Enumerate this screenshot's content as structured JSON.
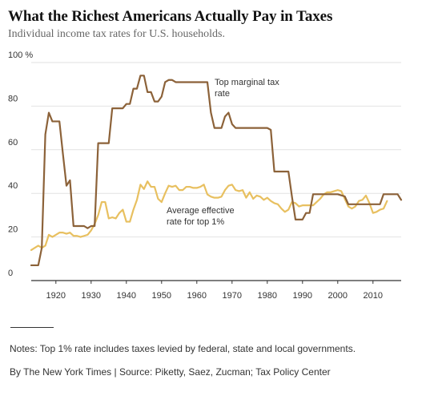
{
  "title": "What the Richest Americans Actually Pay in Taxes",
  "subtitle": "Individual income tax rates for U.S. households.",
  "notes": "Notes: Top 1% rate includes taxes levied by federal, state and local governments.",
  "credit": "By The New York Times | Source: Piketty, Saez, Zucman; Tax Policy Center",
  "colors": {
    "top_marginal": "#8c6239",
    "effective": "#e8c060",
    "grid": "#e2e2e2",
    "baseline": "#333333",
    "text": "#333333"
  },
  "chart_data": {
    "type": "line",
    "xlim": [
      1913,
      2018
    ],
    "ylim": [
      0,
      100
    ],
    "x_ticks": [
      1920,
      1930,
      1940,
      1950,
      1960,
      1970,
      1980,
      1990,
      2000,
      2010
    ],
    "y_ticks": [
      {
        "value": 0,
        "label": "0"
      },
      {
        "value": 20,
        "label": "20"
      },
      {
        "value": 40,
        "label": "40"
      },
      {
        "value": 60,
        "label": "60"
      },
      {
        "value": 80,
        "label": "80"
      },
      {
        "value": 100,
        "label": "100 %"
      }
    ],
    "grid": true,
    "series": [
      {
        "name": "Top marginal tax rate",
        "label_lines": [
          "Top marginal tax",
          "rate"
        ],
        "color": "#8c6239",
        "x": [
          1913,
          1914,
          1915,
          1916,
          1917,
          1918,
          1919,
          1920,
          1921,
          1922,
          1923,
          1924,
          1925,
          1926,
          1927,
          1928,
          1929,
          1930,
          1931,
          1932,
          1933,
          1934,
          1935,
          1936,
          1937,
          1938,
          1939,
          1940,
          1941,
          1942,
          1943,
          1944,
          1945,
          1946,
          1947,
          1948,
          1949,
          1950,
          1951,
          1952,
          1953,
          1954,
          1955,
          1956,
          1957,
          1958,
          1959,
          1960,
          1961,
          1962,
          1963,
          1964,
          1965,
          1966,
          1967,
          1968,
          1969,
          1970,
          1971,
          1972,
          1973,
          1974,
          1975,
          1976,
          1977,
          1978,
          1979,
          1980,
          1981,
          1982,
          1983,
          1984,
          1985,
          1986,
          1987,
          1988,
          1989,
          1990,
          1991,
          1992,
          1993,
          1994,
          1995,
          1996,
          1997,
          1998,
          1999,
          2000,
          2001,
          2002,
          2003,
          2004,
          2005,
          2006,
          2007,
          2008,
          2009,
          2010,
          2011,
          2012,
          2013,
          2014,
          2015,
          2016,
          2017,
          2018
        ],
        "y": [
          7,
          7,
          7,
          15,
          67,
          77,
          73,
          73,
          73,
          58,
          43.5,
          46,
          25,
          25,
          25,
          25,
          24,
          25,
          25,
          63,
          63,
          63,
          63,
          79,
          79,
          79,
          79,
          81,
          81,
          88,
          88,
          94,
          94,
          86.45,
          86.45,
          82.13,
          82.13,
          84.36,
          91,
          92,
          92,
          91,
          91,
          91,
          91,
          91,
          91,
          91,
          91,
          91,
          91,
          77,
          70,
          70,
          70,
          75.25,
          77,
          71.75,
          70,
          70,
          70,
          70,
          70,
          70,
          70,
          70,
          70,
          70,
          69.13,
          50,
          50,
          50,
          50,
          50,
          38.5,
          28,
          28,
          28,
          31,
          31,
          39.6,
          39.6,
          39.6,
          39.6,
          39.6,
          39.6,
          39.6,
          39.6,
          39.1,
          38.6,
          35,
          35,
          35,
          35,
          35,
          35,
          35,
          35,
          35,
          35,
          39.6,
          39.6,
          39.6,
          39.6,
          39.6,
          37
        ]
      },
      {
        "name": "Average effective rate for top 1%",
        "label_lines": [
          "Average effective",
          "rate for top 1%"
        ],
        "color": "#e8c060",
        "x": [
          1913,
          1914,
          1915,
          1916,
          1917,
          1918,
          1919,
          1920,
          1921,
          1922,
          1923,
          1924,
          1925,
          1926,
          1927,
          1928,
          1929,
          1930,
          1931,
          1932,
          1933,
          1934,
          1935,
          1936,
          1937,
          1938,
          1939,
          1940,
          1941,
          1942,
          1943,
          1944,
          1945,
          1946,
          1947,
          1948,
          1949,
          1950,
          1951,
          1952,
          1953,
          1954,
          1955,
          1956,
          1957,
          1958,
          1959,
          1960,
          1961,
          1962,
          1963,
          1964,
          1965,
          1966,
          1967,
          1968,
          1969,
          1970,
          1971,
          1972,
          1973,
          1974,
          1975,
          1976,
          1977,
          1978,
          1979,
          1980,
          1981,
          1982,
          1983,
          1984,
          1985,
          1986,
          1987,
          1988,
          1989,
          1990,
          1991,
          1992,
          1993,
          1994,
          1995,
          1996,
          1997,
          1998,
          1999,
          2000,
          2001,
          2002,
          2003,
          2004,
          2005,
          2006,
          2007,
          2008,
          2009,
          2010,
          2011,
          2012,
          2013,
          2014
        ],
        "y": [
          14,
          15,
          16,
          15,
          16,
          21,
          20,
          21,
          22,
          22,
          21.5,
          22,
          20.5,
          20.5,
          20,
          20.5,
          21,
          23,
          26,
          30,
          36,
          36,
          28.5,
          29,
          28.5,
          31,
          32.5,
          27,
          27,
          32.5,
          37,
          44,
          42,
          45.5,
          43,
          43,
          37.5,
          36,
          40,
          43.5,
          43,
          43.5,
          41.5,
          41.5,
          43,
          43,
          42.5,
          42.5,
          43,
          44,
          39.5,
          38.5,
          38,
          38,
          38.5,
          41.5,
          43.5,
          44,
          41.5,
          41,
          41.5,
          38,
          40.5,
          37.5,
          39,
          38.5,
          37,
          38,
          36.5,
          35.5,
          35,
          33,
          31.5,
          32.5,
          36,
          35.5,
          34,
          34.5,
          34.5,
          34.5,
          34.5,
          36,
          37.5,
          39.5,
          40.5,
          40.5,
          41,
          41.5,
          41,
          37.5,
          34,
          33,
          34,
          36.5,
          37,
          39,
          35.5,
          31,
          31.5,
          32.5,
          33,
          36.5
        ]
      }
    ]
  }
}
